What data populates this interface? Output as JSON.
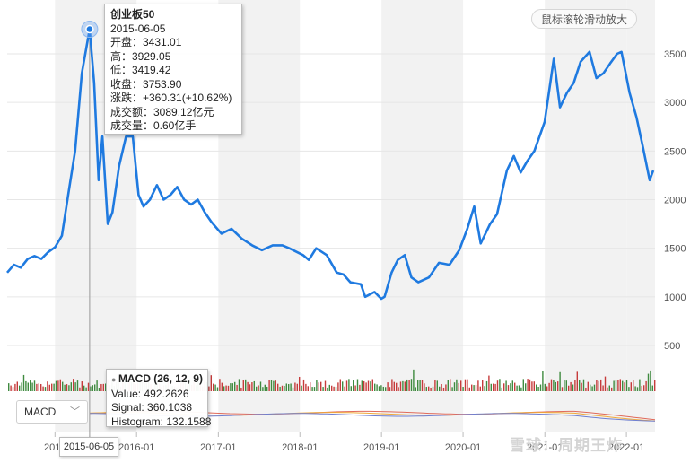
{
  "chart_data": {
    "type": "line",
    "title": "创业板50",
    "y_axis_ticks": [
      "500",
      "1000",
      "1500",
      "2000",
      "2500",
      "3000",
      "3500"
    ],
    "x_axis_ticks": [
      "2015",
      "2016-01",
      "2017-01",
      "2018-01",
      "2019-01",
      "2020-01",
      "2021-01",
      "2022-01"
    ],
    "ylim": [
      0,
      3700
    ],
    "grid": true,
    "series": [
      {
        "values": [
          [
            "2014-06-01",
            1250
          ],
          [
            "2014-07-01",
            1330
          ],
          [
            "2014-08-01",
            1300
          ],
          [
            "2014-09-01",
            1390
          ],
          [
            "2014-10-01",
            1420
          ],
          [
            "2014-11-01",
            1390
          ],
          [
            "2014-12-01",
            1460
          ],
          [
            "2015-01-01",
            1510
          ],
          [
            "2015-02-01",
            1630
          ],
          [
            "2015-03-01",
            2050
          ],
          [
            "2015-04-01",
            2500
          ],
          [
            "2015-05-01",
            3300
          ],
          [
            "2015-06-05",
            3753.9
          ],
          [
            "2015-06-25",
            3200
          ],
          [
            "2015-07-15",
            2200
          ],
          [
            "2015-08-01",
            2650
          ],
          [
            "2015-08-25",
            1750
          ],
          [
            "2015-09-15",
            1870
          ],
          [
            "2015-10-15",
            2350
          ],
          [
            "2015-11-15",
            2650
          ],
          [
            "2015-12-15",
            2650
          ],
          [
            "2016-01-10",
            2050
          ],
          [
            "2016-02-01",
            1930
          ],
          [
            "2016-03-01",
            2000
          ],
          [
            "2016-04-01",
            2150
          ],
          [
            "2016-05-01",
            2000
          ],
          [
            "2016-06-01",
            2050
          ],
          [
            "2016-07-01",
            2130
          ],
          [
            "2016-08-01",
            2000
          ],
          [
            "2016-09-01",
            1950
          ],
          [
            "2016-10-01",
            2000
          ],
          [
            "2016-11-01",
            1870
          ],
          [
            "2016-12-01",
            1770
          ],
          [
            "2017-01-15",
            1650
          ],
          [
            "2017-03-01",
            1700
          ],
          [
            "2017-04-15",
            1600
          ],
          [
            "2017-06-01",
            1530
          ],
          [
            "2017-07-15",
            1480
          ],
          [
            "2017-09-01",
            1530
          ],
          [
            "2017-10-15",
            1530
          ],
          [
            "2017-11-15",
            1500
          ],
          [
            "2018-01-15",
            1430
          ],
          [
            "2018-02-10",
            1380
          ],
          [
            "2018-03-15",
            1500
          ],
          [
            "2018-05-01",
            1430
          ],
          [
            "2018-06-15",
            1250
          ],
          [
            "2018-07-15",
            1230
          ],
          [
            "2018-08-15",
            1150
          ],
          [
            "2018-10-01",
            1130
          ],
          [
            "2018-10-20",
            1000
          ],
          [
            "2018-12-01",
            1050
          ],
          [
            "2018-12-31",
            980
          ],
          [
            "2019-01-15",
            1000
          ],
          [
            "2019-02-15",
            1250
          ],
          [
            "2019-03-15",
            1380
          ],
          [
            "2019-04-15",
            1430
          ],
          [
            "2019-05-15",
            1200
          ],
          [
            "2019-06-15",
            1150
          ],
          [
            "2019-08-01",
            1200
          ],
          [
            "2019-09-15",
            1350
          ],
          [
            "2019-11-01",
            1330
          ],
          [
            "2019-12-15",
            1480
          ],
          [
            "2020-01-20",
            1700
          ],
          [
            "2020-02-20",
            1930
          ],
          [
            "2020-03-20",
            1550
          ],
          [
            "2020-05-01",
            1750
          ],
          [
            "2020-06-01",
            1850
          ],
          [
            "2020-07-15",
            2300
          ],
          [
            "2020-08-15",
            2450
          ],
          [
            "2020-09-15",
            2280
          ],
          [
            "2020-10-15",
            2400
          ],
          [
            "2020-11-15",
            2500
          ],
          [
            "2020-12-31",
            2800
          ],
          [
            "2021-02-10",
            3450
          ],
          [
            "2021-03-10",
            2950
          ],
          [
            "2021-04-10",
            3100
          ],
          [
            "2021-05-10",
            3200
          ],
          [
            "2021-06-10",
            3420
          ],
          [
            "2021-07-20",
            3520
          ],
          [
            "2021-08-20",
            3250
          ],
          [
            "2021-09-20",
            3300
          ],
          [
            "2021-10-20",
            3400
          ],
          [
            "2021-11-20",
            3500
          ],
          [
            "2021-12-10",
            3520
          ],
          [
            "2022-01-15",
            3100
          ],
          [
            "2022-02-15",
            2850
          ],
          [
            "2022-03-15",
            2550
          ],
          [
            "2022-04-15",
            2200
          ],
          [
            "2022-05-01",
            2300
          ]
        ]
      }
    ],
    "volume_panel": {
      "colors": [
        "#c63b3b",
        "#3f8a3f"
      ]
    },
    "macd_panel": {
      "lines": [
        "#e06a5a",
        "#f0a93a",
        "#6e7fd1"
      ]
    },
    "line_color": "#1f7ae0",
    "highlight_date": "2015-06-05"
  },
  "ui": {
    "hint_button": "鼠标滚轮滑动放大",
    "indicator_select": "MACD",
    "crosshair_date": "2015-06-05",
    "watermark": "雪球：周期王炸"
  },
  "tooltip": {
    "title": "创业板50",
    "date": "2015-06-05",
    "rows": [
      "开盘：3431.01",
      "高：3929.05",
      "低：3419.42",
      "收盘：3753.90",
      "涨跌：+360.31(+10.62%)",
      "成交额：3089.12亿元",
      "成交量：0.60亿手"
    ]
  },
  "macd_tooltip": {
    "title": "MACD (26, 12, 9)",
    "rows": [
      "Value: 492.2626",
      "Signal: 360.1038",
      "Histogram: 132.1588"
    ]
  }
}
